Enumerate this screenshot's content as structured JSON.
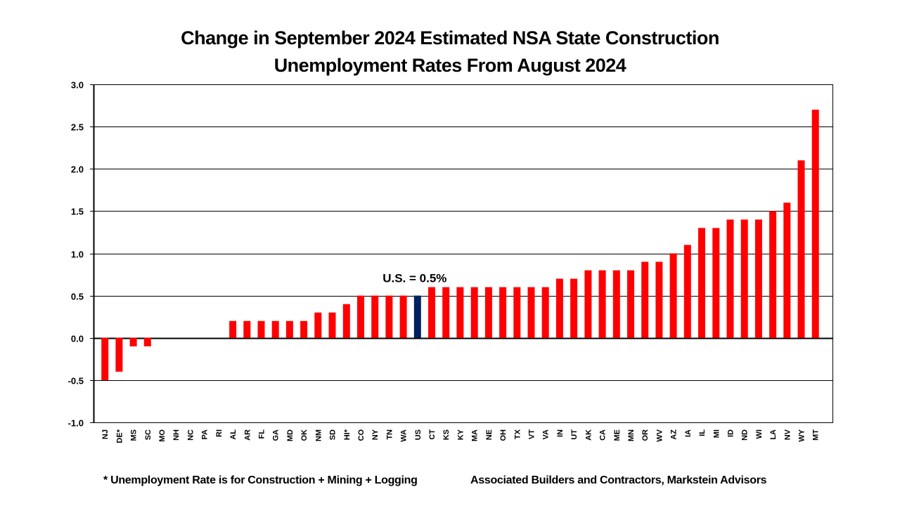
{
  "chart_data": {
    "type": "bar",
    "title": "Change in September 2024 Estimated NSA State Construction Unemployment Rates From August 2024",
    "title_lines": [
      "Change in September 2024 Estimated NSA State Construction",
      "Unemployment Rates From August 2024"
    ],
    "xlabel": "",
    "ylabel": "",
    "ylim": [
      -1.0,
      3.0
    ],
    "yticks": [
      "3.0",
      "2.5",
      "2.0",
      "1.5",
      "1.0",
      "0.5",
      "0.0",
      "-0.5",
      "-1.0"
    ],
    "ytick_values": [
      3.0,
      2.5,
      2.0,
      1.5,
      1.0,
      0.5,
      0.0,
      -0.5,
      -1.0
    ],
    "grid": true,
    "legend": "none",
    "categories": [
      "NJ",
      "DE*",
      "MS",
      "SC",
      "MO",
      "NH",
      "NC",
      "PA",
      "RI",
      "AL",
      "AR",
      "FL",
      "GA",
      "MD",
      "OK",
      "NM",
      "SD",
      "HI*",
      "CO",
      "NY",
      "TN",
      "WA",
      "US",
      "CT",
      "KS",
      "KY",
      "MA",
      "NE",
      "OH",
      "TX",
      "VT",
      "VA",
      "IN",
      "UT",
      "AK",
      "CA",
      "ME",
      "MN",
      "OR",
      "WV",
      "AZ",
      "IA",
      "IL",
      "MI",
      "ID",
      "ND",
      "WI",
      "LA",
      "NV",
      "WY",
      "MT"
    ],
    "values": [
      -0.5,
      -0.4,
      -0.1,
      -0.1,
      0.0,
      0.0,
      0.0,
      0.0,
      0.0,
      0.2,
      0.2,
      0.2,
      0.2,
      0.2,
      0.2,
      0.3,
      0.3,
      0.4,
      0.5,
      0.5,
      0.5,
      0.5,
      0.5,
      0.6,
      0.6,
      0.6,
      0.6,
      0.6,
      0.6,
      0.6,
      0.6,
      0.6,
      0.7,
      0.7,
      0.8,
      0.8,
      0.8,
      0.8,
      0.9,
      0.9,
      1.0,
      1.1,
      1.3,
      1.3,
      1.4,
      1.4,
      1.4,
      1.5,
      1.6,
      2.1,
      2.7
    ],
    "highlight_category": "US",
    "annotation": "U.S. = 0.5%",
    "colors": {
      "bar": "#ff0000",
      "highlight": "#002060",
      "axis": "#000000",
      "grid": "#000000"
    }
  },
  "footer": {
    "footnote": "* Unemployment Rate is for Construction + Mining + Logging",
    "source": "Associated Builders and Contractors, Markstein Advisors"
  }
}
